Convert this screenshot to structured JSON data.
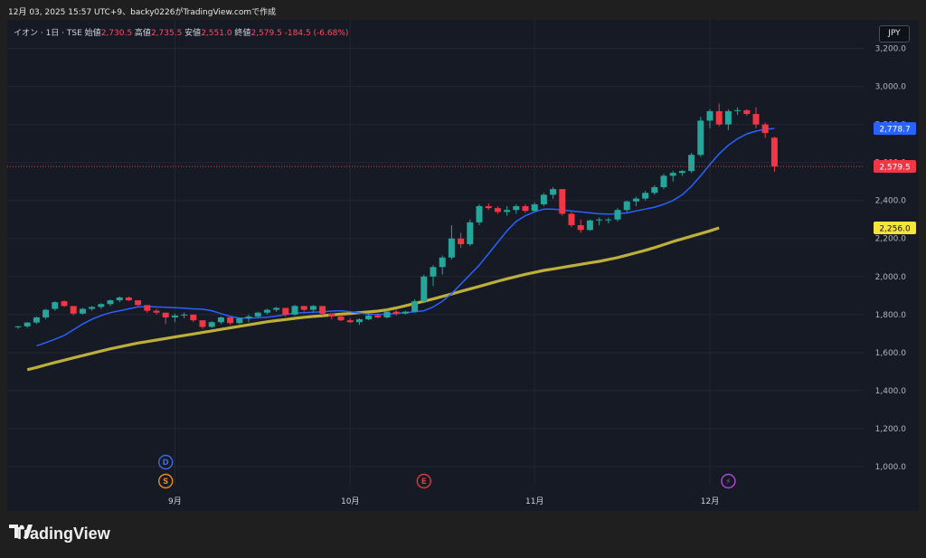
{
  "caption": "12月 03, 2025 15:57 UTC+9、backy0226がTradingView.comで作成",
  "legend": {
    "symbol": "イオン · 1日 · TSE",
    "open_label": "始値",
    "open_value": "2,730.5",
    "high_label": "高値",
    "high_value": "2,735.5",
    "low_label": "安値",
    "low_value": "2,551.0",
    "close_label": "終値",
    "close_value": "2,579.5",
    "change": "-184.5 (-6.68%)"
  },
  "currency": "JPY",
  "brand": {
    "name": "TradingView"
  },
  "colors": {
    "up": "#26a69a",
    "down": "#f23645",
    "ma_short": "#2962ff",
    "ma_long": "#bdb03a",
    "background": "#161a25"
  },
  "chart_data": {
    "type": "candlestick",
    "ylim": [
      900,
      3350
    ],
    "yticks": [
      1000,
      1200,
      1400,
      1600,
      1800,
      2000,
      2200,
      2400,
      2600,
      2800,
      3000,
      3200
    ],
    "ytick_labels": [
      "1,000.0",
      "1,200.0",
      "1,400.0",
      "1,600.0",
      "1,800.0",
      "2,000.0",
      "2,200.0",
      "2,400.0",
      "2,600.0",
      "2,800.0",
      "3,000.0",
      "3,200.0"
    ],
    "xticks": [
      {
        "label": "9月",
        "index": 17
      },
      {
        "label": "10月",
        "index": 36
      },
      {
        "label": "11月",
        "index": 56
      },
      {
        "label": "12月",
        "index": 75
      }
    ],
    "candles": [
      [
        1735,
        1740,
        1725,
        1738
      ],
      [
        1738,
        1760,
        1730,
        1758
      ],
      [
        1758,
        1790,
        1750,
        1785
      ],
      [
        1785,
        1830,
        1775,
        1825
      ],
      [
        1830,
        1870,
        1820,
        1865
      ],
      [
        1870,
        1875,
        1840,
        1845
      ],
      [
        1845,
        1835,
        1795,
        1805
      ],
      [
        1805,
        1835,
        1800,
        1830
      ],
      [
        1830,
        1845,
        1820,
        1840
      ],
      [
        1840,
        1860,
        1830,
        1855
      ],
      [
        1855,
        1880,
        1845,
        1875
      ],
      [
        1875,
        1895,
        1865,
        1890
      ],
      [
        1890,
        1895,
        1870,
        1875
      ],
      [
        1875,
        1870,
        1845,
        1850
      ],
      [
        1850,
        1840,
        1810,
        1820
      ],
      [
        1820,
        1830,
        1800,
        1810
      ],
      [
        1810,
        1790,
        1750,
        1785
      ],
      [
        1785,
        1805,
        1760,
        1795
      ],
      [
        1795,
        1810,
        1780,
        1800
      ],
      [
        1800,
        1795,
        1760,
        1770
      ],
      [
        1770,
        1760,
        1725,
        1735
      ],
      [
        1735,
        1765,
        1730,
        1760
      ],
      [
        1760,
        1790,
        1750,
        1785
      ],
      [
        1785,
        1790,
        1745,
        1755
      ],
      [
        1755,
        1785,
        1750,
        1780
      ],
      [
        1780,
        1800,
        1760,
        1790
      ],
      [
        1790,
        1815,
        1780,
        1810
      ],
      [
        1810,
        1830,
        1800,
        1825
      ],
      [
        1825,
        1840,
        1815,
        1835
      ],
      [
        1835,
        1830,
        1790,
        1800
      ],
      [
        1800,
        1850,
        1795,
        1845
      ],
      [
        1845,
        1845,
        1815,
        1825
      ],
      [
        1825,
        1850,
        1815,
        1845
      ],
      [
        1845,
        1835,
        1795,
        1805
      ],
      [
        1805,
        1795,
        1775,
        1790
      ],
      [
        1790,
        1800,
        1765,
        1770
      ],
      [
        1770,
        1780,
        1755,
        1760
      ],
      [
        1760,
        1780,
        1745,
        1775
      ],
      [
        1775,
        1805,
        1770,
        1795
      ],
      [
        1795,
        1805,
        1780,
        1785
      ],
      [
        1785,
        1825,
        1780,
        1815
      ],
      [
        1815,
        1825,
        1795,
        1805
      ],
      [
        1805,
        1820,
        1800,
        1815
      ],
      [
        1815,
        1880,
        1810,
        1870
      ],
      [
        1870,
        2010,
        1860,
        2000
      ],
      [
        2000,
        2060,
        1950,
        2050
      ],
      [
        2050,
        2110,
        2010,
        2100
      ],
      [
        2100,
        2270,
        2090,
        2200
      ],
      [
        2200,
        2230,
        2150,
        2170
      ],
      [
        2170,
        2300,
        2160,
        2285
      ],
      [
        2285,
        2380,
        2270,
        2370
      ],
      [
        2370,
        2385,
        2350,
        2360
      ],
      [
        2360,
        2370,
        2330,
        2340
      ],
      [
        2340,
        2370,
        2320,
        2350
      ],
      [
        2350,
        2380,
        2330,
        2370
      ],
      [
        2370,
        2380,
        2335,
        2345
      ],
      [
        2345,
        2390,
        2340,
        2380
      ],
      [
        2380,
        2440,
        2370,
        2430
      ],
      [
        2430,
        2470,
        2410,
        2460
      ],
      [
        2460,
        2450,
        2320,
        2330
      ],
      [
        2330,
        2340,
        2260,
        2270
      ],
      [
        2270,
        2300,
        2230,
        2245
      ],
      [
        2245,
        2300,
        2240,
        2295
      ],
      [
        2295,
        2310,
        2270,
        2300
      ],
      [
        2300,
        2310,
        2280,
        2300
      ],
      [
        2300,
        2360,
        2290,
        2350
      ],
      [
        2350,
        2400,
        2340,
        2395
      ],
      [
        2395,
        2420,
        2370,
        2410
      ],
      [
        2410,
        2450,
        2400,
        2440
      ],
      [
        2440,
        2480,
        2430,
        2470
      ],
      [
        2470,
        2540,
        2460,
        2530
      ],
      [
        2530,
        2555,
        2500,
        2545
      ],
      [
        2545,
        2560,
        2530,
        2555
      ],
      [
        2555,
        2650,
        2545,
        2640
      ],
      [
        2640,
        2840,
        2630,
        2820
      ],
      [
        2820,
        2880,
        2780,
        2870
      ],
      [
        2870,
        2910,
        2790,
        2800
      ],
      [
        2800,
        2880,
        2770,
        2870
      ],
      [
        2870,
        2890,
        2850,
        2875
      ],
      [
        2875,
        2880,
        2845,
        2855
      ],
      [
        2855,
        2890,
        2780,
        2800
      ],
      [
        2800,
        2810,
        2730,
        2755
      ],
      [
        2730.5,
        2735.5,
        2551.0,
        2579.5
      ]
    ],
    "series": [
      {
        "values": [
          1636,
          1652,
          1670,
          1690,
          1720,
          1750,
          1775,
          1795,
          1810,
          1820,
          1830,
          1840,
          1842,
          1840,
          1838,
          1836,
          1834,
          1830,
          1828,
          1820,
          1805,
          1790,
          1782,
          1781,
          1783,
          1786,
          1792,
          1800,
          1808,
          1810,
          1812,
          1815,
          1818,
          1820,
          1815,
          1808,
          1802,
          1800,
          1802,
          1806,
          1810,
          1815,
          1820,
          1840,
          1870,
          1910,
          1960,
          2010,
          2060,
          2120,
          2180,
          2240,
          2290,
          2320,
          2340,
          2355,
          2355,
          2350,
          2345,
          2340,
          2335,
          2330,
          2328,
          2330,
          2335,
          2345,
          2355,
          2365,
          2380,
          2400,
          2430,
          2475,
          2530,
          2590,
          2645,
          2690,
          2725,
          2750,
          2765,
          2775,
          2778.7
        ]
      },
      {
        "values": [
          1510,
          1522,
          1535,
          1548,
          1560,
          1572,
          1584,
          1596,
          1608,
          1620,
          1630,
          1640,
          1650,
          1658,
          1666,
          1674,
          1682,
          1690,
          1698,
          1706,
          1714,
          1722,
          1730,
          1738,
          1746,
          1754,
          1762,
          1768,
          1774,
          1780,
          1786,
          1790,
          1794,
          1798,
          1802,
          1806,
          1810,
          1814,
          1818,
          1825,
          1835,
          1846,
          1858,
          1870,
          1882,
          1895,
          1908,
          1922,
          1935,
          1948,
          1962,
          1975,
          1988,
          2000,
          2012,
          2022,
          2032,
          2040,
          2048,
          2056,
          2064,
          2072,
          2080,
          2090,
          2100,
          2112,
          2125,
          2138,
          2152,
          2168,
          2184,
          2198,
          2212,
          2226,
          2240,
          2256.0
        ]
      }
    ],
    "price_labels": [
      {
        "value": 2778.7,
        "text": "2,778.7",
        "color": "#2962ff",
        "text_color": "#ffffff"
      },
      {
        "value": 2579.5,
        "text": "2,579.5",
        "color": "#f23645",
        "text_color": "#ffffff"
      },
      {
        "value": 2256.0,
        "text": "2,256.0",
        "color": "#f5e43b",
        "text_color": "#111111"
      }
    ],
    "current_price": 2579.5,
    "event_markers": [
      {
        "index": 16,
        "letter": "D",
        "color": "#3f6bd8",
        "row": 0
      },
      {
        "index": 16,
        "letter": "S",
        "color": "#f08c1a",
        "row": 1
      },
      {
        "index": 44,
        "letter": "E",
        "color": "#e0393e",
        "row": 1
      },
      {
        "index": 77,
        "letter": "⚡",
        "color": "#b04ad2",
        "row": 1
      }
    ]
  }
}
